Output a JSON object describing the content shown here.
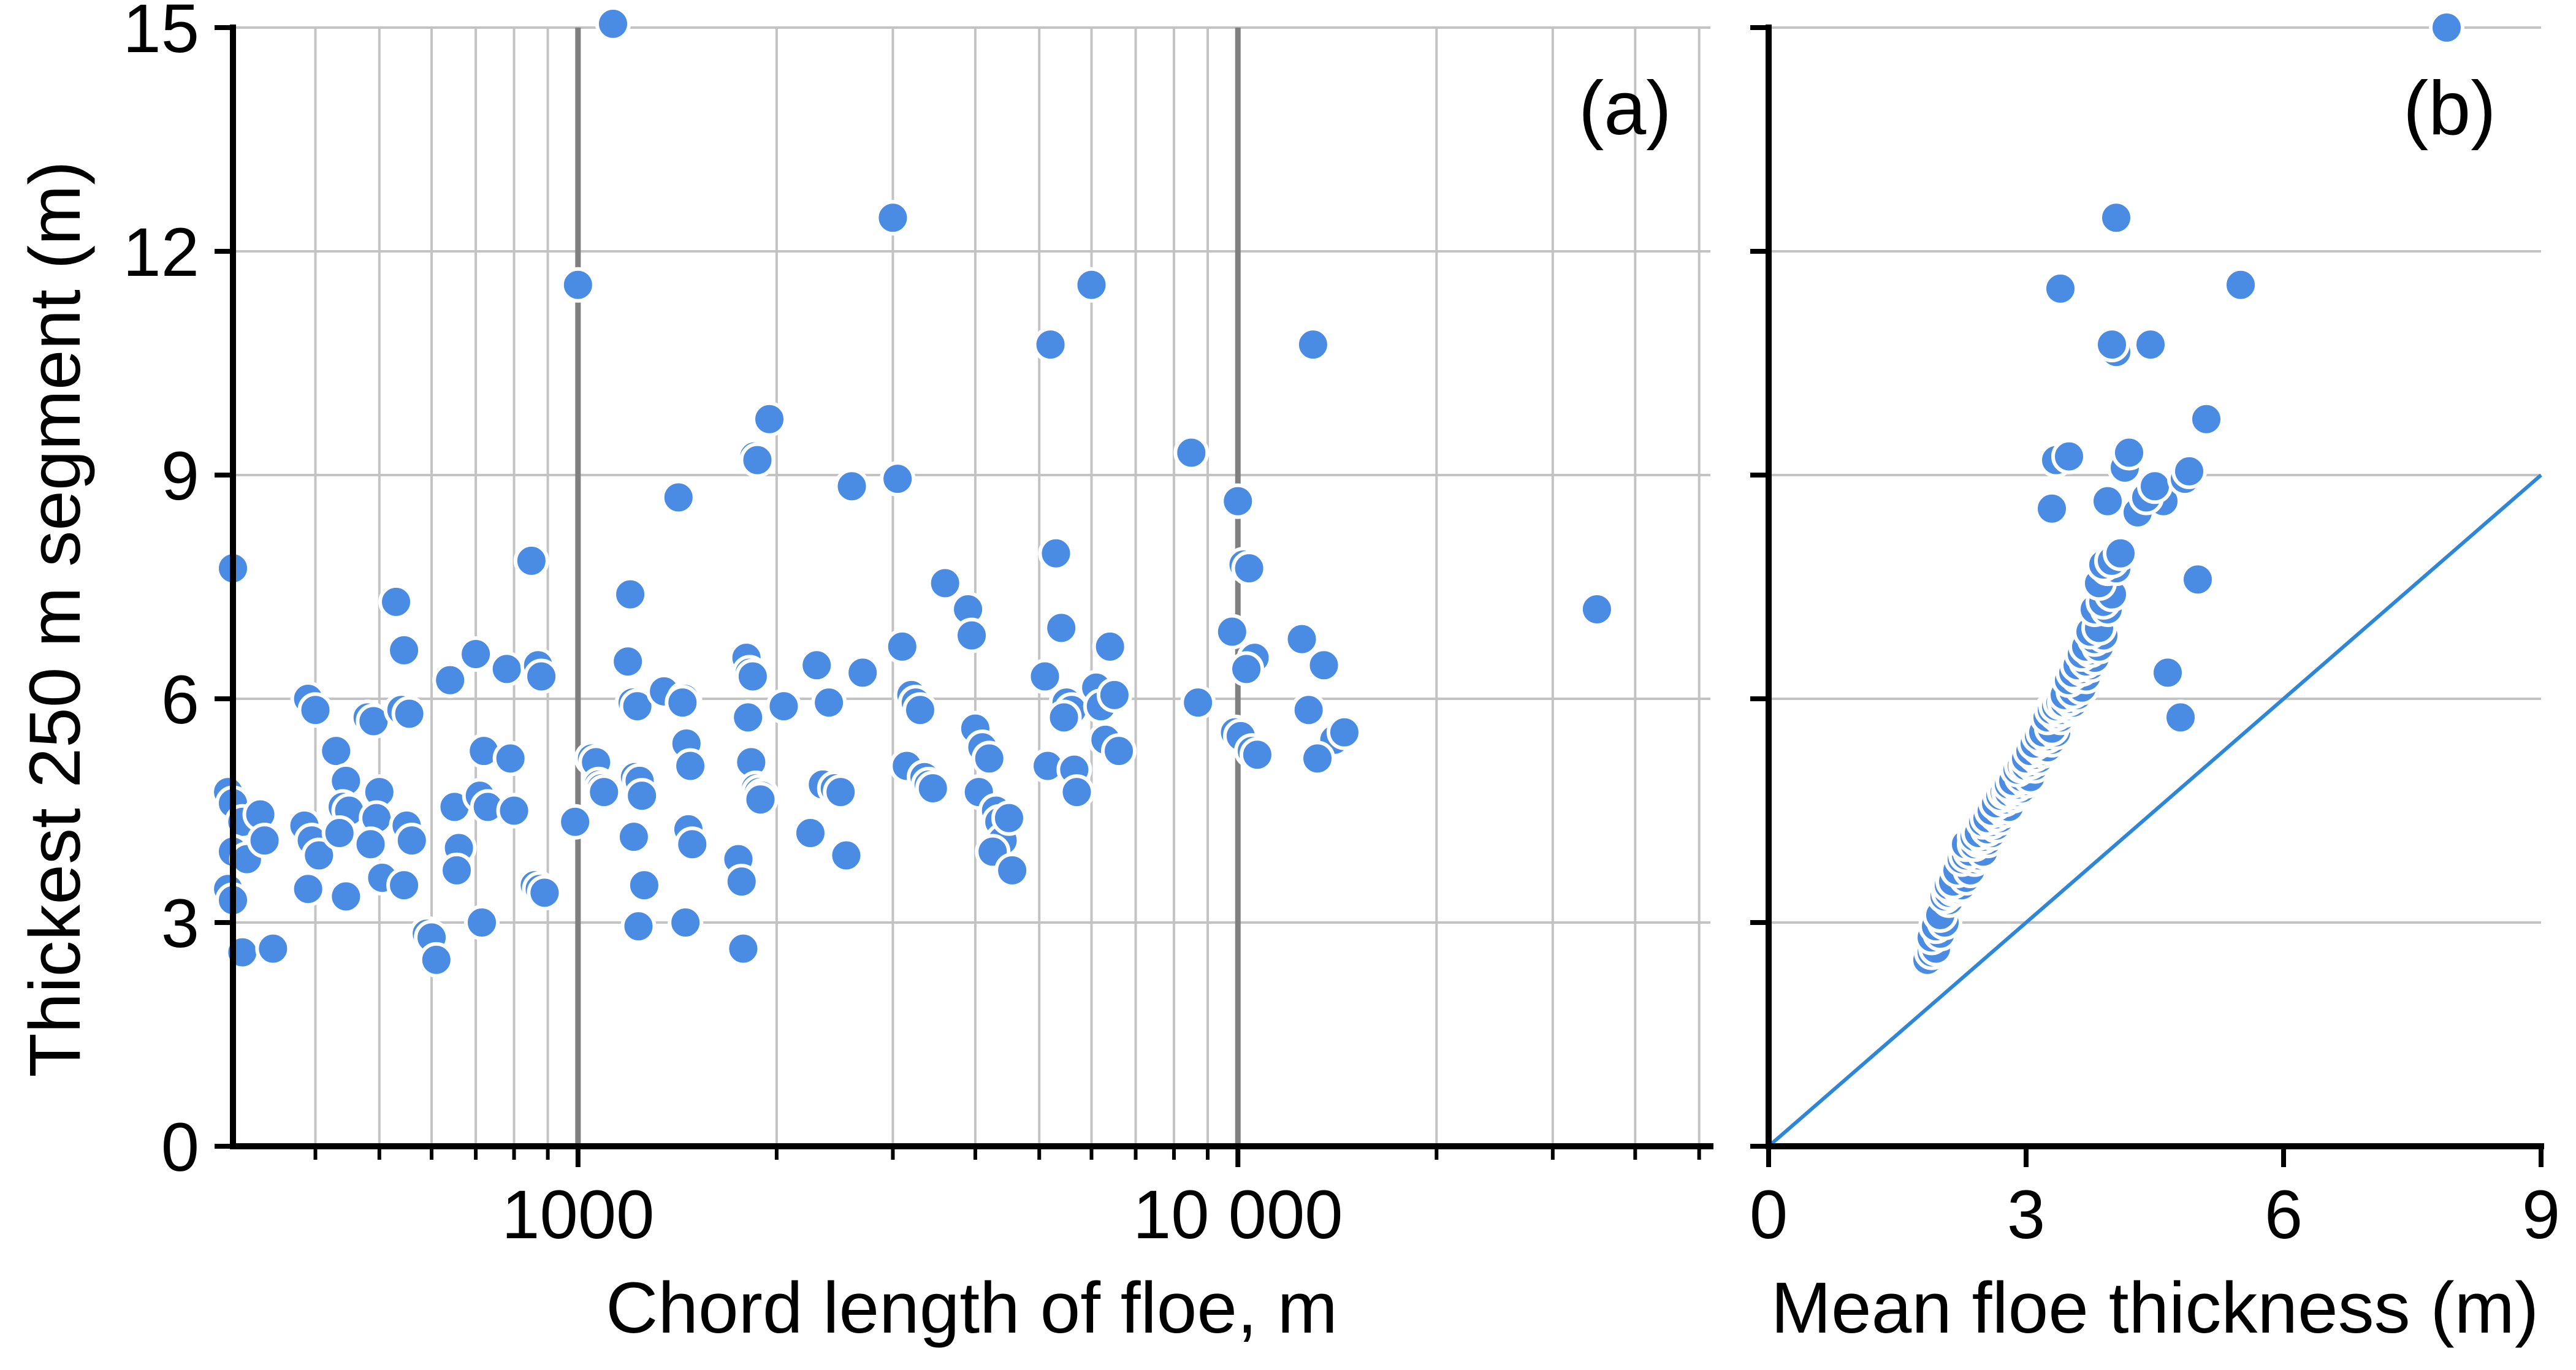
{
  "figure": {
    "background": "#ffffff",
    "marker_color": "#4a8ce4",
    "marker_stroke": "#ffffff",
    "grid_color": "#c3c3c3",
    "grid_major_color": "#7f7f7f",
    "axis_color": "#000000",
    "text_color": "#000000",
    "one_to_one_line_color": "#2e86d9"
  },
  "chart_data": [
    {
      "type": "scatter",
      "panel_label": "(a)",
      "xlabel": "Chord length of floe, m",
      "ylabel": "Thickest 250 m segment (m)",
      "x_scale": "log",
      "xlim": [
        300,
        52000
      ],
      "ylim": [
        0,
        15
      ],
      "x_ticks": [
        {
          "value": 1000,
          "label": "1000"
        },
        {
          "value": 10000,
          "label": "10 000"
        }
      ],
      "x_minor_gridlines": [
        400,
        500,
        600,
        700,
        800,
        900,
        2000,
        3000,
        4000,
        5000,
        6000,
        7000,
        8000,
        9000,
        20000,
        30000,
        40000,
        50000
      ],
      "x_major_gridlines": [
        1000,
        10000
      ],
      "y_ticks": [
        0,
        3,
        6,
        9,
        12,
        15
      ],
      "y_gridlines": [
        3,
        6,
        9,
        12,
        15
      ],
      "grid": true,
      "legend": false,
      "points": [
        [
          300,
          7.75
        ],
        [
          295,
          4.75
        ],
        [
          300,
          4.6
        ],
        [
          310,
          4.35
        ],
        [
          300,
          3.95
        ],
        [
          315,
          3.85
        ],
        [
          295,
          3.45
        ],
        [
          300,
          3.3
        ],
        [
          310,
          2.6
        ],
        [
          330,
          4.45
        ],
        [
          335,
          4.1
        ],
        [
          345,
          2.65
        ],
        [
          390,
          6.0
        ],
        [
          400,
          5.85
        ],
        [
          385,
          4.3
        ],
        [
          395,
          4.1
        ],
        [
          405,
          3.9
        ],
        [
          390,
          3.45
        ],
        [
          430,
          5.3
        ],
        [
          445,
          4.9
        ],
        [
          440,
          4.55
        ],
        [
          450,
          4.5
        ],
        [
          435,
          4.2
        ],
        [
          445,
          3.35
        ],
        [
          480,
          5.75
        ],
        [
          490,
          5.7
        ],
        [
          500,
          4.75
        ],
        [
          495,
          4.4
        ],
        [
          485,
          4.05
        ],
        [
          505,
          3.6
        ],
        [
          530,
          7.3
        ],
        [
          545,
          6.65
        ],
        [
          540,
          5.85
        ],
        [
          555,
          5.8
        ],
        [
          550,
          4.3
        ],
        [
          560,
          4.1
        ],
        [
          545,
          3.5
        ],
        [
          590,
          2.85
        ],
        [
          600,
          2.8
        ],
        [
          610,
          2.5
        ],
        [
          640,
          6.25
        ],
        [
          650,
          4.55
        ],
        [
          660,
          4.0
        ],
        [
          655,
          3.7
        ],
        [
          700,
          6.6
        ],
        [
          720,
          5.3
        ],
        [
          710,
          4.7
        ],
        [
          730,
          4.55
        ],
        [
          715,
          3.0
        ],
        [
          780,
          6.4
        ],
        [
          790,
          5.2
        ],
        [
          800,
          4.5
        ],
        [
          850,
          7.85
        ],
        [
          870,
          6.45
        ],
        [
          880,
          6.3
        ],
        [
          860,
          3.5
        ],
        [
          875,
          3.45
        ],
        [
          890,
          3.4
        ],
        [
          1000,
          11.55
        ],
        [
          990,
          4.35
        ],
        [
          1050,
          5.2
        ],
        [
          1065,
          5.15
        ],
        [
          1075,
          4.85
        ],
        [
          1085,
          4.8
        ],
        [
          1095,
          4.75
        ],
        [
          1130,
          15.05
        ],
        [
          1200,
          7.4
        ],
        [
          1190,
          6.5
        ],
        [
          1210,
          5.95
        ],
        [
          1230,
          5.9
        ],
        [
          1220,
          4.95
        ],
        [
          1240,
          4.9
        ],
        [
          1250,
          4.7
        ],
        [
          1215,
          4.15
        ],
        [
          1260,
          3.5
        ],
        [
          1235,
          2.95
        ],
        [
          1350,
          6.1
        ],
        [
          1420,
          8.7
        ],
        [
          1450,
          6.0
        ],
        [
          1440,
          5.95
        ],
        [
          1460,
          5.4
        ],
        [
          1480,
          5.1
        ],
        [
          1470,
          4.25
        ],
        [
          1490,
          4.05
        ],
        [
          1455,
          3.0
        ],
        [
          1950,
          9.75
        ],
        [
          1850,
          9.25
        ],
        [
          1870,
          9.2
        ],
        [
          1800,
          6.55
        ],
        [
          1820,
          6.35
        ],
        [
          1840,
          6.3
        ],
        [
          1810,
          5.75
        ],
        [
          1830,
          5.15
        ],
        [
          1860,
          4.8
        ],
        [
          1880,
          4.75
        ],
        [
          1900,
          4.7
        ],
        [
          1890,
          4.65
        ],
        [
          1750,
          3.85
        ],
        [
          1770,
          3.55
        ],
        [
          1780,
          2.65
        ],
        [
          2050,
          5.9
        ],
        [
          2600,
          8.85
        ],
        [
          2300,
          6.45
        ],
        [
          2400,
          5.95
        ],
        [
          2350,
          4.85
        ],
        [
          2450,
          4.8
        ],
        [
          2500,
          4.75
        ],
        [
          2250,
          4.2
        ],
        [
          2550,
          3.9
        ],
        [
          2700,
          6.35
        ],
        [
          3000,
          12.45
        ],
        [
          3050,
          8.95
        ],
        [
          3100,
          6.7
        ],
        [
          3200,
          6.05
        ],
        [
          3250,
          5.95
        ],
        [
          3300,
          5.85
        ],
        [
          3150,
          5.1
        ],
        [
          3350,
          4.95
        ],
        [
          3400,
          4.85
        ],
        [
          3450,
          4.8
        ],
        [
          3600,
          7.55
        ],
        [
          3900,
          7.2
        ],
        [
          3950,
          6.85
        ],
        [
          4000,
          5.6
        ],
        [
          4100,
          5.35
        ],
        [
          4200,
          5.2
        ],
        [
          4050,
          4.75
        ],
        [
          4300,
          4.5
        ],
        [
          4350,
          4.35
        ],
        [
          4400,
          4.1
        ],
        [
          4250,
          3.95
        ],
        [
          4500,
          4.4
        ],
        [
          4550,
          3.7
        ],
        [
          5200,
          10.75
        ],
        [
          5300,
          7.95
        ],
        [
          5400,
          6.95
        ],
        [
          5100,
          6.3
        ],
        [
          5500,
          5.95
        ],
        [
          5600,
          5.85
        ],
        [
          5450,
          5.75
        ],
        [
          5150,
          5.1
        ],
        [
          5650,
          5.05
        ],
        [
          5700,
          4.75
        ],
        [
          6000,
          11.55
        ],
        [
          6100,
          6.15
        ],
        [
          6200,
          5.9
        ],
        [
          6400,
          6.7
        ],
        [
          6500,
          6.05
        ],
        [
          6300,
          5.45
        ],
        [
          6600,
          5.3
        ],
        [
          8500,
          9.3
        ],
        [
          8700,
          5.95
        ],
        [
          10000,
          8.65
        ],
        [
          10200,
          7.8
        ],
        [
          10400,
          7.75
        ],
        [
          9800,
          6.9
        ],
        [
          10600,
          6.55
        ],
        [
          10300,
          6.4
        ],
        [
          9900,
          5.55
        ],
        [
          10100,
          5.5
        ],
        [
          10500,
          5.3
        ],
        [
          10700,
          5.25
        ],
        [
          13000,
          10.75
        ],
        [
          12500,
          6.8
        ],
        [
          13500,
          6.45
        ],
        [
          12800,
          5.85
        ],
        [
          14000,
          5.45
        ],
        [
          14500,
          5.55
        ],
        [
          13200,
          5.2
        ],
        [
          35000,
          7.2
        ]
      ]
    },
    {
      "type": "scatter",
      "panel_label": "(b)",
      "xlabel": "Mean floe thickness (m)",
      "ylabel": "",
      "x_scale": "linear",
      "xlim": [
        0,
        9
      ],
      "ylim": [
        0,
        15
      ],
      "x_ticks": [
        {
          "value": 0,
          "label": "0"
        },
        {
          "value": 3,
          "label": "3"
        },
        {
          "value": 6,
          "label": "6"
        },
        {
          "value": 9,
          "label": "9"
        }
      ],
      "x_minor_gridlines": [],
      "x_major_gridlines": [],
      "y_ticks": [
        0,
        3,
        6,
        9,
        12,
        15
      ],
      "y_gridlines": [
        3,
        6,
        9,
        12,
        15
      ],
      "grid": true,
      "legend": false,
      "one_to_one_line": {
        "from": [
          0,
          0
        ],
        "to": [
          9,
          9
        ]
      },
      "points": [
        [
          1.85,
          2.5
        ],
        [
          1.9,
          2.6
        ],
        [
          1.95,
          2.65
        ],
        [
          1.9,
          2.8
        ],
        [
          2.0,
          2.85
        ],
        [
          1.95,
          2.95
        ],
        [
          2.05,
          3.0
        ],
        [
          2.0,
          3.1
        ],
        [
          2.1,
          3.3
        ],
        [
          2.05,
          3.35
        ],
        [
          2.1,
          3.4
        ],
        [
          2.15,
          3.45
        ],
        [
          2.2,
          3.45
        ],
        [
          2.1,
          3.5
        ],
        [
          2.2,
          3.5
        ],
        [
          2.25,
          3.5
        ],
        [
          2.15,
          3.55
        ],
        [
          2.3,
          3.6
        ],
        [
          2.2,
          3.7
        ],
        [
          2.35,
          3.7
        ],
        [
          2.25,
          3.85
        ],
        [
          2.4,
          3.85
        ],
        [
          2.3,
          3.9
        ],
        [
          2.45,
          3.9
        ],
        [
          2.35,
          3.95
        ],
        [
          2.5,
          3.95
        ],
        [
          2.3,
          4.05
        ],
        [
          2.4,
          4.05
        ],
        [
          2.45,
          4.1
        ],
        [
          2.55,
          4.1
        ],
        [
          2.4,
          4.15
        ],
        [
          2.5,
          4.15
        ],
        [
          2.45,
          4.2
        ],
        [
          2.6,
          4.2
        ],
        [
          2.55,
          4.25
        ],
        [
          2.65,
          4.3
        ],
        [
          2.5,
          4.35
        ],
        [
          2.6,
          4.35
        ],
        [
          2.55,
          4.4
        ],
        [
          2.7,
          4.4
        ],
        [
          2.65,
          4.45
        ],
        [
          2.6,
          4.5
        ],
        [
          2.75,
          4.5
        ],
        [
          2.7,
          4.55
        ],
        [
          2.8,
          4.55
        ],
        [
          2.65,
          4.6
        ],
        [
          2.75,
          4.65
        ],
        [
          2.7,
          4.7
        ],
        [
          2.85,
          4.7
        ],
        [
          2.75,
          4.75
        ],
        [
          2.8,
          4.75
        ],
        [
          2.9,
          4.75
        ],
        [
          2.85,
          4.8
        ],
        [
          2.95,
          4.8
        ],
        [
          2.8,
          4.85
        ],
        [
          2.9,
          4.85
        ],
        [
          2.85,
          4.9
        ],
        [
          3.0,
          4.9
        ],
        [
          2.95,
          4.95
        ],
        [
          3.05,
          4.95
        ],
        [
          2.9,
          5.05
        ],
        [
          2.95,
          5.1
        ],
        [
          3.0,
          5.1
        ],
        [
          3.1,
          5.1
        ],
        [
          3.05,
          5.15
        ],
        [
          3.0,
          5.2
        ],
        [
          3.15,
          5.2
        ],
        [
          3.1,
          5.25
        ],
        [
          3.05,
          5.3
        ],
        [
          3.2,
          5.3
        ],
        [
          3.15,
          5.35
        ],
        [
          3.25,
          5.35
        ],
        [
          3.1,
          5.4
        ],
        [
          3.2,
          5.45
        ],
        [
          3.3,
          5.45
        ],
        [
          3.15,
          5.5
        ],
        [
          3.25,
          5.5
        ],
        [
          3.2,
          5.55
        ],
        [
          3.35,
          5.55
        ],
        [
          3.3,
          5.6
        ],
        [
          3.25,
          5.75
        ],
        [
          3.4,
          5.75
        ],
        [
          4.8,
          5.75
        ],
        [
          3.35,
          5.8
        ],
        [
          3.3,
          5.85
        ],
        [
          3.45,
          5.85
        ],
        [
          3.4,
          5.85
        ],
        [
          3.35,
          5.9
        ],
        [
          3.5,
          5.9
        ],
        [
          3.4,
          5.95
        ],
        [
          3.45,
          5.95
        ],
        [
          3.55,
          5.95
        ],
        [
          3.5,
          6.0
        ],
        [
          3.45,
          6.05
        ],
        [
          3.6,
          6.05
        ],
        [
          3.55,
          6.1
        ],
        [
          3.65,
          6.15
        ],
        [
          3.5,
          6.25
        ],
        [
          3.6,
          6.3
        ],
        [
          3.7,
          6.3
        ],
        [
          4.65,
          6.35
        ],
        [
          3.55,
          6.35
        ],
        [
          3.65,
          6.4
        ],
        [
          3.6,
          6.45
        ],
        [
          3.75,
          6.45
        ],
        [
          3.7,
          6.5
        ],
        [
          3.8,
          6.55
        ],
        [
          3.65,
          6.6
        ],
        [
          3.75,
          6.65
        ],
        [
          3.7,
          6.7
        ],
        [
          3.85,
          6.7
        ],
        [
          3.8,
          6.8
        ],
        [
          3.9,
          6.85
        ],
        [
          3.75,
          6.9
        ],
        [
          3.85,
          6.95
        ],
        [
          3.8,
          7.2
        ],
        [
          3.95,
          7.2
        ],
        [
          3.9,
          7.3
        ],
        [
          4.0,
          7.4
        ],
        [
          3.85,
          7.55
        ],
        [
          5.0,
          7.6
        ],
        [
          3.95,
          7.75
        ],
        [
          4.05,
          7.75
        ],
        [
          3.9,
          7.8
        ],
        [
          4.0,
          7.85
        ],
        [
          4.1,
          7.95
        ],
        [
          4.3,
          8.5
        ],
        [
          3.3,
          8.55
        ],
        [
          3.95,
          8.65
        ],
        [
          4.6,
          8.65
        ],
        [
          4.4,
          8.7
        ],
        [
          4.5,
          8.85
        ],
        [
          4.85,
          8.95
        ],
        [
          4.9,
          9.05
        ],
        [
          4.15,
          9.1
        ],
        [
          3.35,
          9.2
        ],
        [
          3.5,
          9.25
        ],
        [
          4.2,
          9.3
        ],
        [
          5.1,
          9.75
        ],
        [
          4.05,
          10.65
        ],
        [
          4.0,
          10.75
        ],
        [
          4.45,
          10.75
        ],
        [
          3.4,
          11.5
        ],
        [
          5.5,
          11.55
        ],
        [
          4.05,
          12.45
        ],
        [
          7.9,
          15.0
        ]
      ]
    }
  ]
}
